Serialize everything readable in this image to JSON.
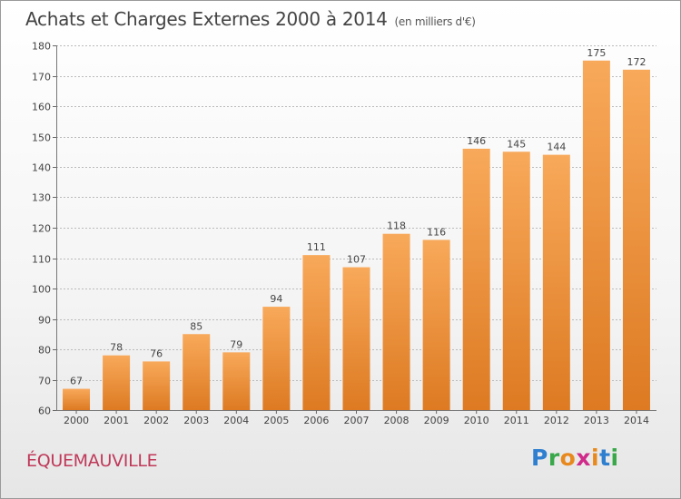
{
  "title": "Achats et Charges Externes 2000 à 2014",
  "subtitle": "(en milliers d'€)",
  "commune": "ÉQUEMAUVILLE",
  "brand": {
    "logo_text": "Proxiti",
    "letter_colors": [
      "#2f7fd0",
      "#39a84a",
      "#e8891e",
      "#d02a8a",
      "#e8891e",
      "#2f7fd0",
      "#39a84a"
    ]
  },
  "colors": {
    "bar_top": "#f8a95a",
    "bar_bottom": "#dd7a22",
    "grid": "#bbbbbb",
    "axis_text": "#444444",
    "commune": "#c0395a"
  },
  "chart_data": {
    "type": "bar",
    "categories": [
      "2000",
      "2001",
      "2002",
      "2003",
      "2004",
      "2005",
      "2006",
      "2007",
      "2008",
      "2009",
      "2010",
      "2011",
      "2012",
      "2013",
      "2014"
    ],
    "values": [
      67,
      78,
      76,
      85,
      79,
      94,
      111,
      107,
      118,
      116,
      146,
      145,
      144,
      175,
      172
    ],
    "data_labels": [
      "67",
      "78",
      "76",
      "85",
      "79",
      "94",
      "111",
      "107",
      "118",
      "116",
      "146",
      "145",
      "144",
      "175",
      "172"
    ],
    "ylim": [
      60,
      180
    ],
    "yticks": [
      60,
      70,
      80,
      90,
      100,
      110,
      120,
      130,
      140,
      150,
      160,
      170,
      180
    ],
    "ytick_labels": [
      "60",
      "70",
      "80",
      "90",
      "100",
      "110",
      "120",
      "130",
      "140",
      "150",
      "160",
      "170",
      "180"
    ],
    "grid": true,
    "xlabel": "",
    "ylabel": ""
  }
}
